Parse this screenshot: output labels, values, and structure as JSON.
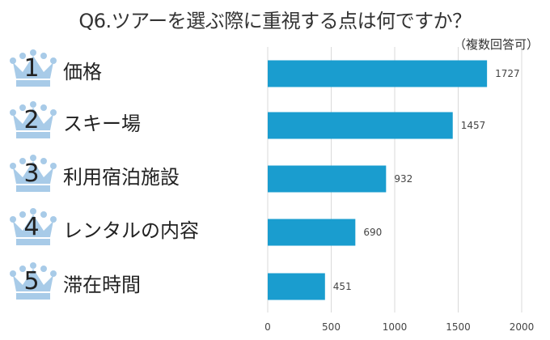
{
  "title": "Q6.ツアーを選ぶ際に重視する点は何ですか？",
  "note": "（複数回答可）",
  "colors": {
    "bar": "#1a9dcf",
    "crown": "#a8cbe8",
    "grid": "#d9d9d9",
    "text": "#333333"
  },
  "icons": {
    "rank": "crown-icon"
  },
  "ranks": [
    {
      "number": "1",
      "label": "価格"
    },
    {
      "number": "2",
      "label": "スキー場"
    },
    {
      "number": "3",
      "label": "利用宿泊施設"
    },
    {
      "number": "4",
      "label": "レンタルの内容"
    },
    {
      "number": "5",
      "label": "滞在時間"
    }
  ],
  "chart_data": {
    "type": "bar",
    "orientation": "horizontal",
    "categories": [
      "価格",
      "スキー場",
      "利用宿泊施設",
      "レンタルの内容",
      "滞在時間"
    ],
    "values": [
      1727,
      1457,
      932,
      690,
      451
    ],
    "xlim": [
      0,
      2000
    ],
    "xticks": [
      0,
      500,
      1000,
      1500,
      2000
    ],
    "grid": true,
    "data_labels": true
  }
}
